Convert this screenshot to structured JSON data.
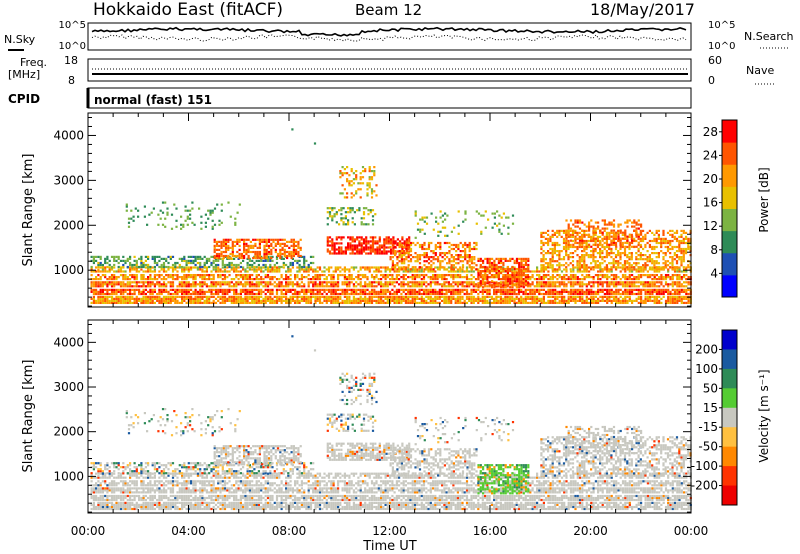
{
  "header": {
    "title": "Hokkaido East (fitACF)",
    "beam": "Beam 12",
    "date": "18/May/2017"
  },
  "noise_panel": {
    "left_label": "N.Sky",
    "left_ticks": [
      "10^5",
      "10^0"
    ],
    "right_label": "N.Search",
    "right_ticks": [
      "10^5",
      "10^0"
    ]
  },
  "freq_panel": {
    "left_label_1": "Freq.",
    "left_label_2": "[MHz]",
    "left_ticks": [
      "18",
      "8"
    ],
    "right_label": "Nave",
    "right_ticks": [
      "60",
      "0"
    ]
  },
  "cpid": {
    "label": "CPID",
    "mode": "normal (fast) 151"
  },
  "chart_data": [
    {
      "type": "heatmap",
      "name": "power",
      "ylabel": "Slant Range [km]",
      "ylim": [
        180,
        4500
      ],
      "yticks": [
        "1000",
        "2000",
        "3000",
        "4000"
      ],
      "colorbar_label": "Power [dB]",
      "colorbar_ticks": [
        "4",
        "8",
        "12",
        "16",
        "20",
        "24",
        "28"
      ],
      "colorbar_range": [
        0,
        30
      ],
      "colorbar_colors": [
        "#0000ff",
        "#1e50b4",
        "#2e8b57",
        "#7cb342",
        "#e8c000",
        "#ff9900",
        "#ff5500",
        "#ff0000"
      ],
      "xlim_hours": [
        0,
        24
      ]
    },
    {
      "type": "heatmap",
      "name": "velocity",
      "ylabel": "Slant Range [km]",
      "ylim": [
        180,
        4500
      ],
      "yticks": [
        "1000",
        "2000",
        "3000",
        "4000"
      ],
      "colorbar_label": "Velocity [m s⁻¹]",
      "colorbar_ticks": [
        "200",
        "100",
        "50",
        "15",
        "-15",
        "-50",
        "-100",
        "-200"
      ],
      "colorbar_range": [
        -250,
        250
      ],
      "colorbar_colors": [
        "#0000cc",
        "#1a5aa0",
        "#2e8b57",
        "#55cc33",
        "#c8c8c0",
        "#ffc040",
        "#ff8800",
        "#ff3300",
        "#ee0000"
      ],
      "xlim_hours": [
        0,
        24
      ]
    }
  ],
  "x_axis": {
    "ticks": [
      "00:00",
      "04:00",
      "08:00",
      "12:00",
      "16:00",
      "20:00",
      "00:00"
    ],
    "label": "Time UT"
  }
}
